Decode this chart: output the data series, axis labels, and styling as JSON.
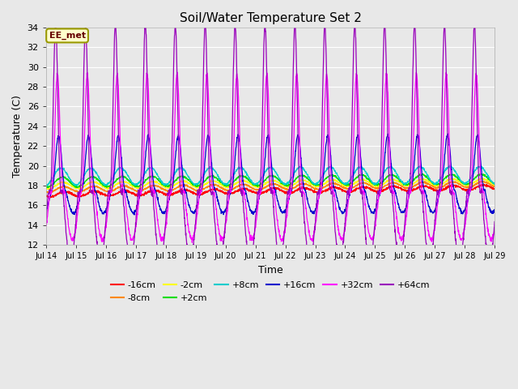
{
  "title": "Soil/Water Temperature Set 2",
  "xlabel": "Time",
  "ylabel": "Temperature (C)",
  "ylim": [
    12,
    34
  ],
  "annotation_text": "EE_met",
  "fig_width": 6.4,
  "fig_height": 4.8,
  "dpi": 100,
  "series": [
    {
      "label": "-16cm",
      "color": "#ff0000",
      "base": 17.1,
      "amp": 0.25,
      "phase": 0.62,
      "trend": 0.048,
      "noise": 0.06,
      "sharpness": 1.0
    },
    {
      "label": "-8cm",
      "color": "#ff8800",
      "base": 17.6,
      "amp": 0.28,
      "phase": 0.6,
      "trend": 0.035,
      "noise": 0.04,
      "sharpness": 1.0
    },
    {
      "label": "-2cm",
      "color": "#ffff00",
      "base": 18.0,
      "amp": 0.32,
      "phase": 0.58,
      "trend": 0.025,
      "noise": 0.04,
      "sharpness": 1.0
    },
    {
      "label": "+2cm",
      "color": "#00dd00",
      "base": 18.35,
      "amp": 0.5,
      "phase": 0.55,
      "trend": 0.02,
      "noise": 0.04,
      "sharpness": 1.0
    },
    {
      "label": "+8cm",
      "color": "#00cccc",
      "base": 18.9,
      "amp": 0.85,
      "phase": 0.5,
      "trend": 0.012,
      "noise": 0.05,
      "sharpness": 1.0
    },
    {
      "label": "+16cm",
      "color": "#0000cc",
      "base": 18.0,
      "amp": 2.8,
      "phase": 0.42,
      "trend": 0.005,
      "noise": 0.08,
      "sharpness": 2.5
    },
    {
      "label": "+32cm",
      "color": "#ff00ff",
      "base": 18.0,
      "amp": 6.0,
      "phase": 0.38,
      "trend": 0.003,
      "noise": 0.12,
      "sharpness": 4.0
    },
    {
      "label": "+64cm",
      "color": "#9900bb",
      "base": 18.0,
      "amp": 8.5,
      "phase": 0.32,
      "trend": 0.001,
      "noise": 0.15,
      "sharpness": 5.0
    }
  ],
  "tick_days": [
    14,
    15,
    16,
    17,
    18,
    19,
    20,
    21,
    22,
    23,
    24,
    25,
    26,
    27,
    28,
    29
  ],
  "yticks": [
    12,
    14,
    16,
    18,
    20,
    22,
    24,
    26,
    28,
    30,
    32,
    34
  ],
  "bg_color": "#e8e8e8",
  "grid_color": "#ffffff"
}
